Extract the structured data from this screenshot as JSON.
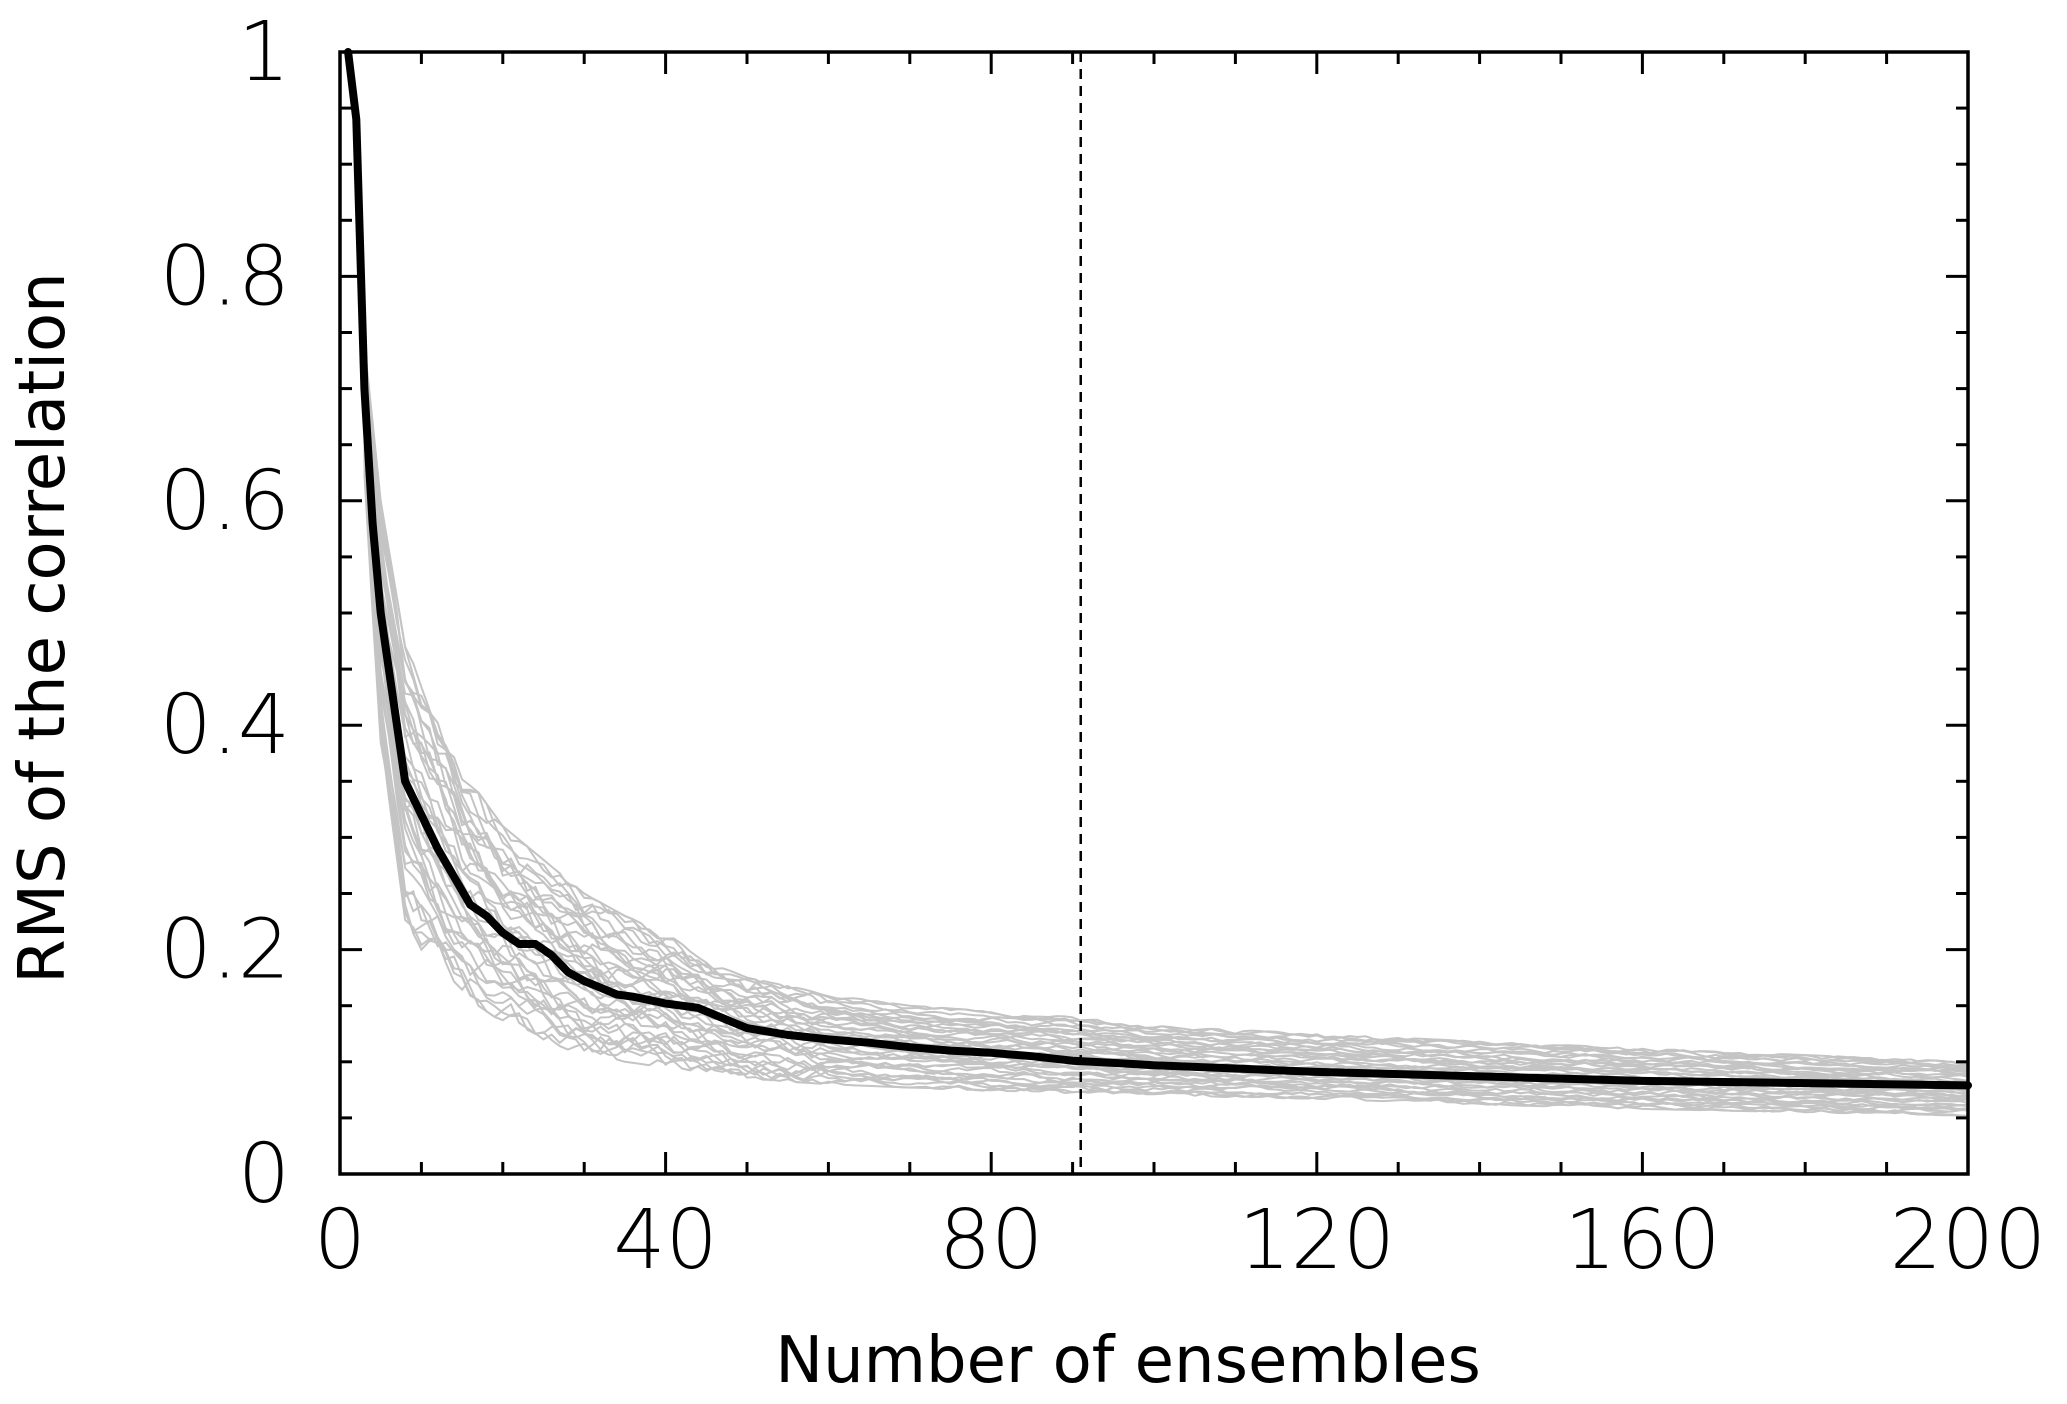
{
  "chart_data": {
    "type": "line",
    "title": "",
    "xlabel": "Number of ensembles",
    "ylabel": "RMS of the correlation",
    "xlim": [
      0,
      200
    ],
    "ylim": [
      0,
      1
    ],
    "x_ticks": [
      0,
      40,
      80,
      120,
      160,
      200
    ],
    "x_tick_labels": [
      "0",
      "40",
      "80",
      "120",
      "160",
      "200"
    ],
    "y_ticks": [
      0,
      0.2,
      0.4,
      0.6,
      0.8,
      1
    ],
    "y_tick_labels": [
      "0",
      "0.2",
      "0.4",
      "0.6",
      "0.8",
      "1"
    ],
    "grid": false,
    "legend": "none",
    "reference_line": {
      "x": 91,
      "style": "dashed",
      "color": "#000000"
    },
    "colors": {
      "mean": "#000000",
      "members": "#c4c4c4"
    },
    "mean_series": {
      "x": [
        1,
        2,
        3,
        4,
        5,
        6,
        8,
        10,
        12,
        14,
        16,
        18,
        20,
        22,
        24,
        26,
        28,
        30,
        32,
        34,
        36,
        38,
        40,
        42,
        44,
        46,
        48,
        50,
        55,
        60,
        65,
        70,
        75,
        80,
        85,
        90,
        95,
        100,
        110,
        120,
        130,
        140,
        150,
        160,
        170,
        180,
        190,
        200
      ],
      "values": [
        1.0,
        0.94,
        0.7,
        0.58,
        0.5,
        0.45,
        0.35,
        0.32,
        0.29,
        0.265,
        0.24,
        0.23,
        0.215,
        0.205,
        0.205,
        0.195,
        0.18,
        0.172,
        0.166,
        0.16,
        0.158,
        0.155,
        0.152,
        0.15,
        0.148,
        0.142,
        0.136,
        0.13,
        0.124,
        0.12,
        0.117,
        0.113,
        0.11,
        0.108,
        0.105,
        0.101,
        0.099,
        0.097,
        0.094,
        0.091,
        0.089,
        0.087,
        0.085,
        0.083,
        0.082,
        0.081,
        0.08,
        0.079
      ]
    },
    "member_envelope": {
      "x": [
        3,
        5,
        8,
        10,
        15,
        20,
        25,
        30,
        35,
        40,
        45,
        50,
        60,
        70,
        80,
        90,
        100,
        120,
        140,
        160,
        180,
        200
      ],
      "lower": [
        0.62,
        0.38,
        0.22,
        0.2,
        0.16,
        0.135,
        0.12,
        0.105,
        0.1,
        0.095,
        0.09,
        0.085,
        0.08,
        0.077,
        0.074,
        0.072,
        0.07,
        0.067,
        0.062,
        0.058,
        0.055,
        0.052
      ],
      "upper": [
        0.74,
        0.6,
        0.47,
        0.44,
        0.36,
        0.31,
        0.28,
        0.25,
        0.23,
        0.215,
        0.19,
        0.175,
        0.16,
        0.15,
        0.145,
        0.14,
        0.132,
        0.125,
        0.118,
        0.112,
        0.106,
        0.1
      ]
    },
    "member_count": 40
  }
}
